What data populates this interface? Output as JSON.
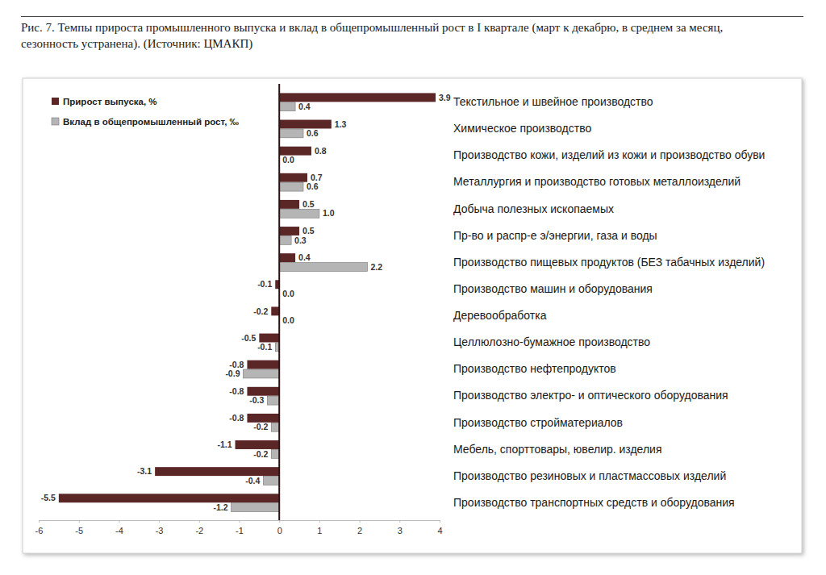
{
  "chart_data": {
    "type": "bar",
    "orientation": "horizontal",
    "title": "Рис. 7. Темпы прироста промышленного выпуска и вклад в общепромышленный рост в I квартале (март к декабрю, в среднем за месяц, сезонность устранена). (Источник: ЦМАКП)",
    "categories": [
      "Текстильное и швейное производство",
      "Химическое производство",
      "Производство кожи, изделий из кожи и производство обуви",
      "Металлургия и производство готовых металлоизделий",
      "Добыча полезных ископаемых",
      "Пр-во и распр-е э/энергии, газа и воды",
      "Производство пищевых продуктов (БЕЗ табачных изделий)",
      "Производство машин и оборудования",
      "Деревообработка",
      "Целлюлозно-бумажное производство",
      "Производство нефтепродуктов",
      "Производство электро- и оптического оборудования",
      "Производство стройматериалов",
      "Мебель, спорттовары, ювелир. изделия",
      "Производство резиновых и пластмассовых изделий",
      "Производство транспортных средств и оборудования"
    ],
    "series": [
      {
        "name": "Прирост выпуска, %",
        "color": "#5a2626",
        "values": [
          3.9,
          1.3,
          0.8,
          0.7,
          0.5,
          0.5,
          0.4,
          -0.1,
          -0.2,
          -0.5,
          -0.8,
          -0.8,
          -0.8,
          -1.1,
          -3.1,
          -5.5
        ],
        "value_labels": [
          "3.9",
          "1.3",
          "0.8",
          "0.7",
          "0.5",
          "0.5",
          "0.4",
          "-0.1",
          "-0.2",
          "-0.5",
          "-0.8",
          "-0.8",
          "-0.8",
          "-1.1",
          "-3.1",
          "-5.5"
        ]
      },
      {
        "name": "Вклад в общепромышленный рост, ‰",
        "color": "#b5b5b5",
        "values": [
          0.4,
          0.6,
          0.0,
          0.6,
          1.0,
          0.3,
          2.2,
          0.0,
          0.0,
          -0.1,
          -0.9,
          -0.3,
          -0.2,
          -0.2,
          -0.4,
          -1.2
        ],
        "value_labels": [
          "0.4",
          "0.6",
          "0.0",
          "0.6",
          "1.0",
          "0.3",
          "2.2",
          "0.0",
          "0.0",
          "-0.1",
          "-0.9",
          "-0.3",
          "-0.2",
          "-0.2",
          "-0.4",
          "-1.2"
        ]
      }
    ],
    "xlim": [
      -6,
      4
    ],
    "xticks": [
      -6,
      -5,
      -4,
      -3,
      -2,
      -1,
      0,
      1,
      2,
      3,
      4
    ],
    "legend": "upper left",
    "data_labels": true
  }
}
